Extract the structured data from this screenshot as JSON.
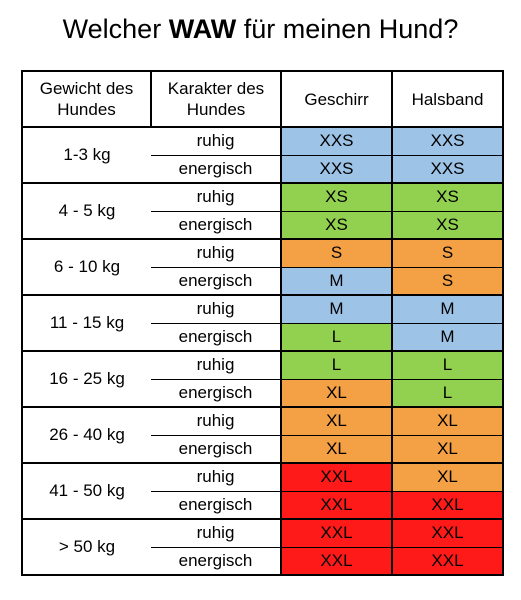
{
  "title": {
    "prefix": "Welcher ",
    "bold": "WAW",
    "suffix": " für meinen Hund?"
  },
  "headers": {
    "weight": "Gewicht des Hundes",
    "character": "Karakter des Hundes",
    "harness": "Geschirr",
    "collar": "Halsband"
  },
  "colors": {
    "blue": "#9dc3e6",
    "green": "#92d050",
    "orange": "#f4a044",
    "red": "#ff1a1a"
  },
  "rows": [
    {
      "weight": "1-3 kg",
      "calm": {
        "label": "ruhig",
        "harness": "XXS",
        "collar": "XXS"
      },
      "energetic": {
        "label": "energisch",
        "harness": "XXS",
        "collar": "XXS"
      }
    },
    {
      "weight": "4 - 5 kg",
      "calm": {
        "label": "ruhig",
        "harness": "XS",
        "collar": "XS"
      },
      "energetic": {
        "label": "energisch",
        "harness": "XS",
        "collar": "XS"
      }
    },
    {
      "weight": "6 - 10 kg",
      "calm": {
        "label": "ruhig",
        "harness": "S",
        "collar": "S"
      },
      "energetic": {
        "label": "energisch",
        "harness": "M",
        "collar": "S"
      }
    },
    {
      "weight": "11 - 15 kg",
      "calm": {
        "label": "ruhig",
        "harness": "M",
        "collar": "M"
      },
      "energetic": {
        "label": "energisch",
        "harness": "L",
        "collar": "M"
      }
    },
    {
      "weight": "16 - 25 kg",
      "calm": {
        "label": "ruhig",
        "harness": "L",
        "collar": "L"
      },
      "energetic": {
        "label": "energisch",
        "harness": "XL",
        "collar": "L"
      }
    },
    {
      "weight": "26 - 40 kg",
      "calm": {
        "label": "ruhig",
        "harness": "XL",
        "collar": "XL"
      },
      "energetic": {
        "label": "energisch",
        "harness": "XL",
        "collar": "XL"
      }
    },
    {
      "weight": "41 - 50 kg",
      "calm": {
        "label": "ruhig",
        "harness": "XXL",
        "collar": "XL"
      },
      "energetic": {
        "label": "energisch",
        "harness": "XXL",
        "collar": "XXL"
      }
    },
    {
      "weight": "> 50 kg",
      "calm": {
        "label": "ruhig",
        "harness": "XXL",
        "collar": "XXL"
      },
      "energetic": {
        "label": "energisch",
        "harness": "XXL",
        "collar": "XXL"
      }
    }
  ]
}
